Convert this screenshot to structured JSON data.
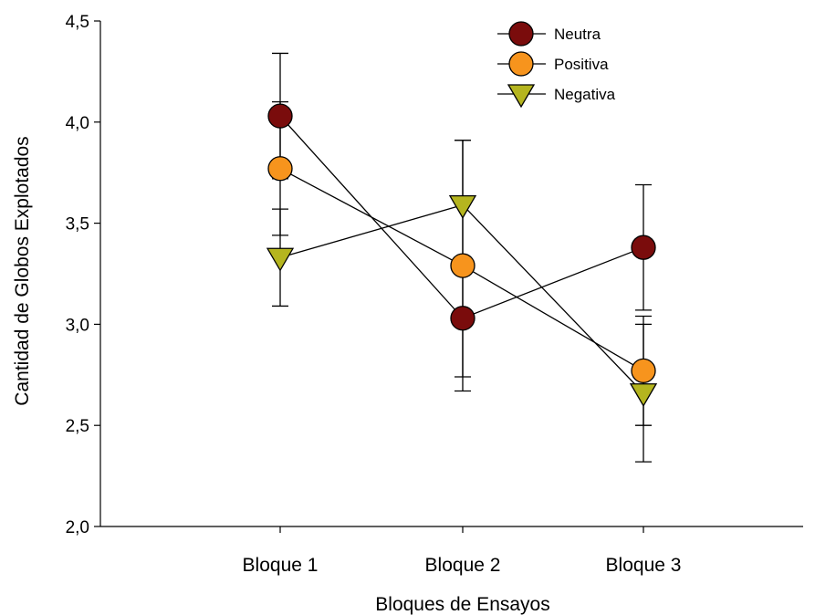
{
  "chart_data": {
    "type": "line",
    "title": "",
    "xlabel": "Bloques de Ensayos",
    "ylabel": "Cantidad de Globos Explotados",
    "categories": [
      "Bloque 1",
      "Bloque 2",
      "Bloque 3"
    ],
    "ylim": [
      2.0,
      4.5
    ],
    "yticks": [
      "2,0",
      "2,5",
      "3,0",
      "3,5",
      "4,0",
      "4,5"
    ],
    "grid": false,
    "legend_position": "top-right",
    "series": [
      {
        "name": "Neutra",
        "marker": "circle",
        "color": "#7a0c0c",
        "values": [
          4.03,
          3.03,
          3.38
        ],
        "error": [
          0.31,
          0.29,
          0.31
        ]
      },
      {
        "name": "Positiva",
        "marker": "circle",
        "color": "#f7941d",
        "values": [
          3.77,
          3.29,
          2.77
        ],
        "error": [
          0.33,
          0.62,
          0.27
        ]
      },
      {
        "name": "Negativa",
        "marker": "triangle-down",
        "color": "#b5b51f",
        "values": [
          3.33,
          3.59,
          2.66
        ],
        "error": [
          0.24,
          0.32,
          0.34
        ]
      }
    ]
  }
}
